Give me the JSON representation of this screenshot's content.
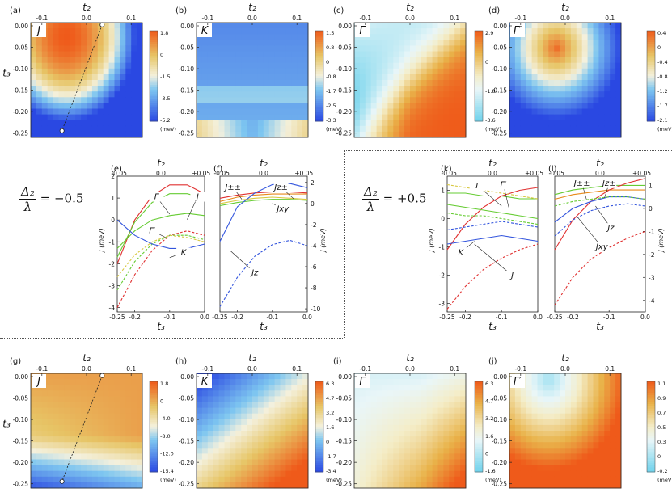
{
  "equations": {
    "left": {
      "numerator": "Δ₂",
      "denominator": "λ",
      "rhs": "= −0.5"
    },
    "right": {
      "numerator": "Δ₂",
      "denominator": "λ",
      "rhs": "= +0.5"
    }
  },
  "colors": {
    "red": "#e03030",
    "green": "#66cc33",
    "yellow": "#d8c840",
    "blue": "#3355dd",
    "orange": "#e88a1a",
    "cmap_warm": "#f06020",
    "cmap_blue": "#2b4de0",
    "cmap_cyan": "#7cd6ee"
  },
  "chart_data": [
    {
      "panel": "(a)",
      "type": "heatmap",
      "symbol": "J",
      "xlabel": "t₂",
      "ylabel": "t₃",
      "xticks": [
        "-0.1",
        "0.0",
        "0.1"
      ],
      "yticks": [
        "0.00",
        "-0.05",
        "-0.10",
        "-0.15",
        "-0.20",
        "-0.25"
      ],
      "xlim": [
        -0.125,
        0.125
      ],
      "ylim": [
        -0.26,
        0.0
      ],
      "colorbar": {
        "ticks": [
          "1.8",
          "0",
          "-1.5",
          "-3.5",
          "-5.2"
        ],
        "unit": "(meV)",
        "range": [
          -5.2,
          1.8
        ]
      },
      "line": {
        "from": [
          0.035,
          -0.005
        ],
        "to": [
          -0.055,
          -0.245
        ]
      }
    },
    {
      "panel": "(b)",
      "type": "heatmap",
      "symbol": "K",
      "xlabel": "t₂",
      "xticks": [
        "-0.1",
        "0.0",
        "0.1"
      ],
      "yticks": [
        "0.00",
        "-0.05",
        "-0.10",
        "-0.15",
        "-0.20",
        "-0.25"
      ],
      "colorbar": {
        "ticks": [
          "1.5",
          "0.8",
          "0",
          "-0.8",
          "-1.7",
          "-2.5",
          "-3.3"
        ],
        "unit": "(meV)",
        "range": [
          -3.3,
          1.5
        ]
      }
    },
    {
      "panel": "(c)",
      "type": "heatmap",
      "symbol": "Γ",
      "xlabel": "t₂",
      "xticks": [
        "-0.1",
        "0.0",
        "0.1"
      ],
      "yticks": [
        "0.00",
        "-0.05",
        "-0.10",
        "-0.15",
        "-0.20",
        "-0.25"
      ],
      "colorbar": {
        "ticks": [
          "2.9",
          "0",
          "-1.8",
          "-3.6"
        ],
        "unit": "(meV)",
        "range": [
          -3.6,
          2.9
        ]
      }
    },
    {
      "panel": "(d)",
      "type": "heatmap",
      "symbol": "Γ′",
      "xlabel": "t₂",
      "xticks": [
        "-0.1",
        "0.0",
        "0.1"
      ],
      "yticks": [
        "0.00",
        "-0.05",
        "-0.10",
        "-0.15",
        "-0.20",
        "-0.25"
      ],
      "colorbar": {
        "ticks": [
          "0.4",
          "0",
          "-0.4",
          "-0.8",
          "-1.2",
          "-1.7",
          "-2.1"
        ],
        "unit": "(meV)",
        "range": [
          -2.1,
          0.4
        ]
      }
    },
    {
      "panel": "(e)",
      "type": "line",
      "xlabel": "t₃",
      "toplabel": "t₂",
      "ylabel": "J (meV)",
      "xticks": [
        "-0.25",
        "-0.2",
        "-0.1",
        "0.0"
      ],
      "topticks": [
        "-0.05",
        "0.0",
        "+0.05"
      ],
      "yticks": [
        "2",
        "1",
        "0",
        "-1",
        "-2",
        "-3",
        "-4"
      ],
      "xlim": [
        -0.25,
        0.0
      ],
      "ylim": [
        -4.2,
        2.0
      ],
      "annotations": [
        "Γ",
        "J",
        "Γ′",
        "K"
      ],
      "series": [
        {
          "name": "J",
          "color": "red",
          "dashed": false,
          "x": [
            -0.25,
            -0.2,
            -0.15,
            -0.1,
            -0.05,
            0.0
          ],
          "y": [
            -2.0,
            0.0,
            1.1,
            1.6,
            1.6,
            1.2
          ]
        },
        {
          "name": "J",
          "color": "red",
          "dashed": true,
          "x": [
            -0.25,
            -0.2,
            -0.15,
            -0.1,
            -0.05,
            0.0
          ],
          "y": [
            -4.0,
            -2.5,
            -1.4,
            -0.7,
            -0.5,
            -0.7
          ]
        },
        {
          "name": "Γ",
          "color": "green",
          "dashed": false,
          "x": [
            -0.25,
            -0.2,
            -0.15,
            -0.1,
            -0.05,
            0.0
          ],
          "y": [
            -1.7,
            -0.1,
            0.8,
            1.2,
            1.2,
            1.0
          ]
        },
        {
          "name": "Γ",
          "color": "green",
          "dashed": true,
          "x": [
            -0.25,
            -0.2,
            -0.15,
            -0.1,
            -0.05,
            0.0
          ],
          "y": [
            -3.2,
            -1.9,
            -1.1,
            -0.7,
            -0.7,
            -0.9
          ]
        },
        {
          "name": "Γ′",
          "color": "green",
          "dashed": false,
          "x": [
            -0.25,
            -0.2,
            -0.15,
            -0.1,
            -0.05,
            0.0
          ],
          "y": [
            -1.3,
            -0.5,
            0.0,
            0.2,
            0.3,
            0.2
          ]
        },
        {
          "name": "Γ′",
          "color": "yellow",
          "dashed": true,
          "x": [
            -0.25,
            -0.2,
            -0.15,
            -0.1,
            -0.05,
            0.0
          ],
          "y": [
            -2.6,
            -1.6,
            -1.0,
            -0.7,
            -0.8,
            -1.0
          ]
        },
        {
          "name": "K",
          "color": "blue",
          "dashed": false,
          "x": [
            -0.25,
            -0.2,
            -0.15,
            -0.1,
            -0.05,
            0.0
          ],
          "y": [
            0.0,
            -0.7,
            -1.1,
            -1.3,
            -1.3,
            -1.1
          ]
        }
      ]
    },
    {
      "panel": "(f)",
      "type": "line",
      "xlabel": "t₃",
      "toplabel": "t₂",
      "ylabel": "J (meV)",
      "xticks": [
        "-0.25",
        "-0.2",
        "-0.1",
        "0.0"
      ],
      "topticks": [
        "-0.05",
        "0.0",
        "+0.05"
      ],
      "yticks": [
        "2",
        "0",
        "-2",
        "-4",
        "-6",
        "-8",
        "-10"
      ],
      "xlim": [
        -0.25,
        0.0
      ],
      "ylim": [
        -10.3,
        2.6
      ],
      "annotations": [
        "J±±",
        "Jz±",
        "Jxy",
        "Jz"
      ],
      "series": [
        {
          "name": "J±±",
          "color": "orange",
          "dashed": false,
          "x": [
            -0.25,
            -0.2,
            -0.15,
            -0.1,
            -0.05,
            0.0
          ],
          "y": [
            0.2,
            0.6,
            0.8,
            0.9,
            0.9,
            0.9
          ]
        },
        {
          "name": "Jz±",
          "color": "red",
          "dashed": false,
          "x": [
            -0.25,
            -0.2,
            -0.15,
            -0.1,
            -0.05,
            0.0
          ],
          "y": [
            0.5,
            0.8,
            1.0,
            1.1,
            1.1,
            1.0
          ]
        },
        {
          "name": "Jxy",
          "color": "yellow",
          "dashed": false,
          "x": [
            -0.25,
            -0.2,
            -0.15,
            -0.1,
            -0.05,
            0.0
          ],
          "y": [
            0.0,
            0.3,
            0.5,
            0.6,
            0.5,
            0.4
          ]
        },
        {
          "name": "Jxy",
          "color": "green",
          "dashed": false,
          "x": [
            -0.25,
            -0.2,
            -0.15,
            -0.1,
            -0.05,
            0.0
          ],
          "y": [
            -0.2,
            0.1,
            0.3,
            0.4,
            0.4,
            0.3
          ]
        },
        {
          "name": "Jz",
          "color": "blue",
          "dashed": false,
          "x": [
            -0.25,
            -0.2,
            -0.15,
            -0.1,
            -0.05,
            0.0
          ],
          "y": [
            -3.6,
            -0.3,
            1.0,
            1.8,
            1.9,
            1.5
          ]
        },
        {
          "name": "Jz",
          "color": "blue",
          "dashed": true,
          "x": [
            -0.25,
            -0.2,
            -0.15,
            -0.1,
            -0.05,
            0.0
          ],
          "y": [
            -9.8,
            -7.0,
            -5.0,
            -3.9,
            -3.5,
            -4.0
          ]
        }
      ]
    },
    {
      "panel": "(k)",
      "type": "line",
      "xlabel": "t₃",
      "toplabel": "t₂",
      "ylabel": "J (meV)",
      "xticks": [
        "-0.25",
        "-0.2",
        "-0.1",
        "0.0"
      ],
      "topticks": [
        "-0.05",
        "0.0",
        "+0.05"
      ],
      "yticks": [
        "1",
        "0",
        "-1",
        "-2",
        "-3"
      ],
      "xlim": [
        -0.25,
        0.0
      ],
      "ylim": [
        -3.3,
        1.5
      ],
      "annotations": [
        "Γ",
        "Γ′",
        "K",
        "J"
      ],
      "series": [
        {
          "name": "J",
          "color": "red",
          "dashed": false,
          "x": [
            -0.25,
            -0.2,
            -0.15,
            -0.1,
            -0.05,
            0.0
          ],
          "y": [
            -1.1,
            -0.2,
            0.4,
            0.8,
            1.0,
            1.1
          ]
        },
        {
          "name": "J",
          "color": "red",
          "dashed": true,
          "x": [
            -0.25,
            -0.2,
            -0.15,
            -0.1,
            -0.05,
            0.0
          ],
          "y": [
            -3.2,
            -2.4,
            -1.8,
            -1.4,
            -1.1,
            -0.9
          ]
        },
        {
          "name": "Γ",
          "color": "green",
          "dashed": false,
          "x": [
            -0.25,
            -0.2,
            -0.15,
            -0.1,
            -0.05,
            0.0
          ],
          "y": [
            0.9,
            0.9,
            0.8,
            0.8,
            0.7,
            0.7
          ]
        },
        {
          "name": "Γ",
          "color": "yellow",
          "dashed": true,
          "x": [
            -0.25,
            -0.2,
            -0.15,
            -0.1,
            -0.05,
            0.0
          ],
          "y": [
            1.2,
            1.1,
            1.0,
            0.9,
            0.8,
            0.7
          ]
        },
        {
          "name": "Γ′",
          "color": "green",
          "dashed": false,
          "x": [
            -0.25,
            -0.2,
            -0.15,
            -0.1,
            -0.05,
            0.0
          ],
          "y": [
            0.5,
            0.4,
            0.3,
            0.2,
            0.1,
            0.0
          ]
        },
        {
          "name": "Γ′",
          "color": "green",
          "dashed": true,
          "x": [
            -0.25,
            -0.2,
            -0.15,
            -0.1,
            -0.05,
            0.0
          ],
          "y": [
            0.2,
            0.1,
            0.1,
            0.0,
            -0.1,
            -0.2
          ]
        },
        {
          "name": "K",
          "color": "blue",
          "dashed": false,
          "x": [
            -0.25,
            -0.2,
            -0.15,
            -0.1,
            -0.05,
            0.0
          ],
          "y": [
            -0.9,
            -0.8,
            -0.7,
            -0.6,
            -0.7,
            -0.8
          ]
        },
        {
          "name": "K",
          "color": "blue",
          "dashed": true,
          "x": [
            -0.25,
            -0.2,
            -0.15,
            -0.1,
            -0.05,
            0.0
          ],
          "y": [
            -0.4,
            -0.3,
            -0.2,
            -0.1,
            -0.2,
            -0.3
          ]
        }
      ]
    },
    {
      "panel": "(l)",
      "type": "line",
      "xlabel": "t₃",
      "toplabel": "t₂",
      "ylabel": "J (meV)",
      "xticks": [
        "-0.25",
        "-0.2",
        "-0.1",
        "0.0"
      ],
      "topticks": [
        "-0.05",
        "0.0",
        "+0.05"
      ],
      "yticks": [
        "1",
        "0",
        "-1",
        "-2",
        "-3",
        "-4"
      ],
      "xlim": [
        -0.25,
        0.0
      ],
      "ylim": [
        -4.5,
        1.4
      ],
      "annotations": [
        "J±±",
        "Jz±",
        "Jz",
        "Jxy"
      ],
      "series": [
        {
          "name": "J±±",
          "color": "orange",
          "dashed": false,
          "x": [
            -0.25,
            -0.2,
            -0.15,
            -0.1,
            -0.05,
            0.0
          ],
          "y": [
            0.4,
            0.6,
            0.7,
            0.8,
            0.8,
            0.8
          ]
        },
        {
          "name": "Jz±",
          "color": "green",
          "dashed": false,
          "x": [
            -0.25,
            -0.2,
            -0.15,
            -0.1,
            -0.05,
            0.0
          ],
          "y": [
            0.6,
            0.8,
            0.9,
            1.0,
            1.0,
            1.0
          ]
        },
        {
          "name": "Jz",
          "color": "red",
          "dashed": false,
          "x": [
            -0.25,
            -0.2,
            -0.15,
            -0.1,
            -0.05,
            0.0
          ],
          "y": [
            -1.8,
            -0.5,
            0.3,
            0.8,
            1.1,
            1.3
          ]
        },
        {
          "name": "Jz",
          "color": "blue",
          "dashed": false,
          "x": [
            -0.25,
            -0.2,
            -0.15,
            -0.1,
            -0.05,
            0.0
          ],
          "y": [
            -0.6,
            0.0,
            0.3,
            0.5,
            0.5,
            0.4
          ]
        },
        {
          "name": "Jxy",
          "color": "blue",
          "dashed": true,
          "x": [
            -0.25,
            -0.2,
            -0.15,
            -0.1,
            -0.05,
            0.0
          ],
          "y": [
            -1.2,
            -0.5,
            -0.1,
            0.1,
            0.2,
            0.1
          ]
        },
        {
          "name": "Jxy",
          "color": "red",
          "dashed": true,
          "x": [
            -0.25,
            -0.2,
            -0.15,
            -0.1,
            -0.05,
            0.0
          ],
          "y": [
            -4.2,
            -3.0,
            -2.2,
            -1.7,
            -1.3,
            -1.0
          ]
        },
        {
          "name": "J±±",
          "color": "green",
          "dashed": true,
          "x": [
            -0.25,
            -0.2,
            -0.15,
            -0.1,
            -0.05,
            0.0
          ],
          "y": [
            0.1,
            0.3,
            0.4,
            0.5,
            0.5,
            0.4
          ]
        }
      ]
    },
    {
      "panel": "(g)",
      "type": "heatmap",
      "symbol": "J",
      "xlabel": "t₂",
      "ylabel": "t₃",
      "xticks": [
        "-0.1",
        "0.0",
        "0.1"
      ],
      "yticks": [
        "0.00",
        "-0.05",
        "-0.10",
        "-0.15",
        "-0.20",
        "-0.25"
      ],
      "colorbar": {
        "ticks": [
          "1.8",
          "0",
          "-4.0",
          "-8.0",
          "-12.0",
          "-15.4"
        ],
        "unit": "(meV)",
        "range": [
          -15.4,
          1.8
        ]
      },
      "line": {
        "from": [
          0.035,
          -0.005
        ],
        "to": [
          -0.055,
          -0.245
        ]
      }
    },
    {
      "panel": "(h)",
      "type": "heatmap",
      "symbol": "K",
      "xlabel": "t₂",
      "xticks": [
        "-0.1",
        "0.0",
        "0.1"
      ],
      "yticks": [
        "0.00",
        "-0.05",
        "-0.10",
        "-0.15",
        "-0.20",
        "-0.25"
      ],
      "colorbar": {
        "ticks": [
          "6.3",
          "4.7",
          "3.2",
          "1.6",
          "0",
          "-1.7",
          "-3.4"
        ],
        "unit": "(meV)",
        "range": [
          -3.4,
          6.3
        ]
      }
    },
    {
      "panel": "(i)",
      "type": "heatmap",
      "symbol": "Γ",
      "xlabel": "t₂",
      "xticks": [
        "-0.1",
        "0.0",
        "0.1"
      ],
      "yticks": [
        "0.00",
        "-0.05",
        "-0.10",
        "-0.15",
        "-0.20",
        "-0.25"
      ],
      "colorbar": {
        "ticks": [
          "6.3",
          "4.7",
          "3.2",
          "1.6",
          "0",
          "-1.6"
        ],
        "unit": "(meV)",
        "range": [
          -1.6,
          6.3
        ]
      }
    },
    {
      "panel": "(j)",
      "type": "heatmap",
      "symbol": "Γ′",
      "xlabel": "t₂",
      "xticks": [
        "-0.1",
        "0.0",
        "0.1"
      ],
      "yticks": [
        "0.00",
        "-0.05",
        "-0.10",
        "-0.15",
        "-0.20",
        "-0.25"
      ],
      "colorbar": {
        "ticks": [
          "1.1",
          "0.9",
          "0.7",
          "0.5",
          "0.3",
          "0",
          "-0.2"
        ],
        "unit": "(meV)",
        "range": [
          -0.2,
          1.1
        ]
      }
    }
  ]
}
